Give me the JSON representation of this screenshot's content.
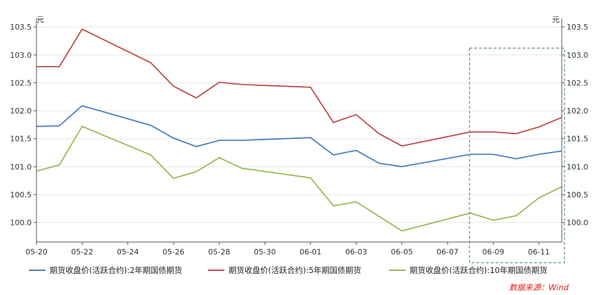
{
  "chart_data": {
    "type": "line",
    "x": [
      "05-20",
      "05-21",
      "05-22",
      "05-25",
      "05-26",
      "05-27",
      "05-28",
      "05-29",
      "06-01",
      "06-02",
      "06-03",
      "06-04",
      "06-05",
      "06-08",
      "06-09",
      "06-10",
      "06-11",
      "06-12"
    ],
    "x_tick_labels": [
      "05-20",
      "05-22",
      "05-24",
      "05-26",
      "05-28",
      "05-30",
      "06-01",
      "06-03",
      "06-05",
      "06-07",
      "06-09",
      "06-11"
    ],
    "series": [
      {
        "name": "期货收盘价(活跃合约):2年期国债期货",
        "color": "#4a7ebb",
        "values": [
          101.72,
          101.73,
          102.09,
          101.74,
          101.51,
          101.36,
          101.47,
          101.47,
          101.52,
          101.21,
          101.29,
          101.06,
          101.0,
          101.22,
          101.22,
          101.14,
          101.22,
          101.28
        ]
      },
      {
        "name": "期货收盘价(活跃合约):5年期国债期货",
        "color": "#be4b48",
        "values": [
          102.79,
          102.79,
          103.46,
          102.86,
          102.44,
          102.23,
          102.51,
          102.47,
          102.42,
          101.79,
          101.93,
          101.59,
          101.37,
          101.62,
          101.62,
          101.59,
          101.71,
          101.88
        ]
      },
      {
        "name": "期货收盘价(活跃合约):10年期国债期货",
        "color": "#98b954",
        "values": [
          100.92,
          101.03,
          101.72,
          101.21,
          100.79,
          100.91,
          101.16,
          100.97,
          100.8,
          100.3,
          100.37,
          100.11,
          99.85,
          100.17,
          100.04,
          100.12,
          100.44,
          100.64
        ]
      }
    ],
    "y_ticks": [
      "100.0",
      "100.5",
      "101.0",
      "101.5",
      "102.0",
      "102.5",
      "103.0",
      "103.5"
    ],
    "ylim": [
      99.65,
      103.65
    ],
    "y_unit": "元",
    "grid": "horizontal",
    "legend_position": "bottom"
  },
  "source_label": "数据来源：Wind"
}
